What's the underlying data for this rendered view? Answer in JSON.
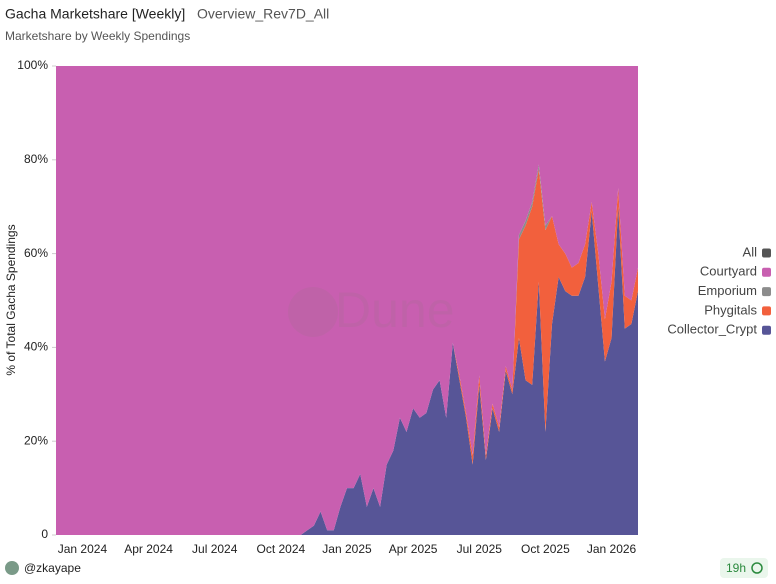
{
  "chart_data": {
    "type": "stacked_area",
    "title": "Gacha Marketshare [Weekly]",
    "query_name": "Overview_Rev7D_All",
    "subtitle": "Marketshare by Weekly Spendings",
    "y_label": "% of Total Gacha Spendings",
    "watermark": "Dune",
    "author": "@zkayape",
    "age": "19h",
    "categories": [
      null,
      null,
      null,
      null,
      "Jan 2024",
      null,
      null,
      null,
      null,
      null,
      null,
      null,
      null,
      null,
      "Apr 2024",
      null,
      null,
      null,
      null,
      null,
      null,
      null,
      null,
      null,
      "Jul 2024",
      null,
      null,
      null,
      null,
      null,
      null,
      null,
      null,
      null,
      "Oct 2024",
      null,
      null,
      null,
      null,
      null,
      null,
      null,
      null,
      null,
      "Jan 2025",
      null,
      null,
      null,
      null,
      null,
      null,
      null,
      null,
      null,
      "Apr 2025",
      null,
      null,
      null,
      null,
      null,
      null,
      null,
      null,
      null,
      "Jul 2025",
      null,
      null,
      null,
      null,
      null,
      null,
      null,
      null,
      null,
      "Oct 2025",
      null,
      null,
      null,
      null,
      null,
      null,
      null,
      null,
      null,
      "Jan 2026",
      null,
      null,
      null,
      null
    ],
    "series": [
      {
        "name": "Collector_Crypt",
        "color": "#575597",
        "values": [
          0,
          0,
          0,
          0,
          0,
          0,
          0,
          0,
          0,
          0,
          0,
          0,
          0,
          0,
          0,
          0,
          0,
          0,
          0,
          0,
          0,
          0,
          0,
          0,
          0,
          0,
          0,
          0,
          0,
          0,
          0,
          0,
          0,
          0,
          0,
          0,
          0,
          0,
          1,
          2,
          5,
          1,
          1,
          6,
          10,
          10,
          13,
          6,
          10,
          6,
          15,
          18,
          25,
          22,
          27,
          25,
          26,
          31,
          33,
          25,
          41,
          33,
          25,
          15,
          32,
          16,
          27,
          22,
          35,
          30,
          42,
          33,
          32,
          54,
          22,
          45,
          55,
          52,
          51,
          51,
          55,
          69,
          53,
          37,
          42,
          70,
          44,
          45,
          52
        ]
      },
      {
        "name": "Phygitals",
        "color": "#f2603d",
        "values": [
          0,
          0,
          0,
          0,
          0,
          0,
          0,
          0,
          0,
          0,
          0,
          0,
          0,
          0,
          0,
          0,
          0,
          0,
          0,
          0,
          0,
          0,
          0,
          0,
          0,
          0,
          0,
          0,
          0,
          0,
          0,
          0,
          0,
          0,
          0,
          0,
          0,
          0,
          0,
          0,
          0,
          0,
          0,
          0,
          0,
          0,
          0,
          0,
          0,
          0,
          0,
          0,
          0,
          0,
          0,
          0,
          0,
          0,
          0,
          0,
          0,
          1,
          1,
          2,
          2,
          1,
          1,
          1,
          1,
          1,
          21,
          33,
          38,
          24,
          43,
          23,
          7,
          8,
          6,
          7,
          7,
          2,
          7,
          9,
          12,
          4,
          7,
          5,
          5
        ]
      },
      {
        "name": "Emporium",
        "color": "#8c8c8c",
        "values": [
          0,
          0,
          0,
          0,
          0,
          0,
          0,
          0,
          0,
          0,
          0,
          0,
          0,
          0,
          0,
          0,
          0,
          0,
          0,
          0,
          0,
          0,
          0,
          0,
          0,
          0,
          0,
          0,
          0,
          0,
          0,
          0,
          0,
          0,
          0,
          0,
          0,
          0,
          0,
          0,
          0,
          0,
          0,
          0,
          0,
          0,
          0,
          0,
          0,
          0,
          0,
          0,
          0,
          0,
          0,
          0,
          0,
          0,
          0,
          0,
          0,
          0,
          0,
          0,
          0,
          0,
          0,
          0,
          0,
          0,
          1,
          1,
          1,
          1,
          1,
          0,
          0,
          0,
          0,
          0,
          0,
          0,
          0,
          0,
          0,
          0,
          0,
          0,
          0
        ]
      },
      {
        "name": "Courtyard",
        "color": "#c85fb0",
        "values": [
          100,
          100,
          100,
          100,
          100,
          100,
          100,
          100,
          100,
          100,
          100,
          100,
          100,
          100,
          100,
          100,
          100,
          100,
          100,
          100,
          100,
          100,
          100,
          100,
          100,
          100,
          100,
          100,
          100,
          100,
          100,
          100,
          100,
          100,
          100,
          100,
          100,
          100,
          99,
          98,
          95,
          99,
          99,
          94,
          90,
          90,
          87,
          94,
          90,
          94,
          85,
          82,
          75,
          78,
          73,
          75,
          74,
          69,
          67,
          75,
          59,
          66,
          74,
          83,
          66,
          83,
          72,
          77,
          64,
          69,
          36,
          33,
          29,
          21,
          34,
          32,
          38,
          40,
          43,
          42,
          38,
          29,
          40,
          54,
          46,
          26,
          49,
          50,
          43
        ]
      },
      {
        "name": "All",
        "color": "#555555",
        "values": [
          0,
          0,
          0,
          0,
          0,
          0,
          0,
          0,
          0,
          0,
          0,
          0,
          0,
          0,
          0,
          0,
          0,
          0,
          0,
          0,
          0,
          0,
          0,
          0,
          0,
          0,
          0,
          0,
          0,
          0,
          0,
          0,
          0,
          0,
          0,
          0,
          0,
          0,
          0,
          0,
          0,
          0,
          0,
          0,
          0,
          0,
          0,
          0,
          0,
          0,
          0,
          0,
          0,
          0,
          0,
          0,
          0,
          0,
          0,
          0,
          0,
          0,
          0,
          0,
          0,
          0,
          0,
          0,
          0,
          0,
          0,
          0,
          0,
          0,
          0,
          0,
          0,
          0,
          0,
          0,
          0,
          0,
          0,
          0,
          0,
          0,
          0,
          0,
          0
        ]
      }
    ],
    "ylim": [
      0,
      100
    ],
    "yticks": [
      0,
      {
        "value": 20,
        "label": "20%"
      },
      {
        "value": 40,
        "label": "40%"
      },
      {
        "value": 60,
        "label": "60%"
      },
      {
        "value": 80,
        "label": "80%"
      },
      {
        "value": 100,
        "label": "100%"
      }
    ],
    "grid": false,
    "legend": "right"
  }
}
